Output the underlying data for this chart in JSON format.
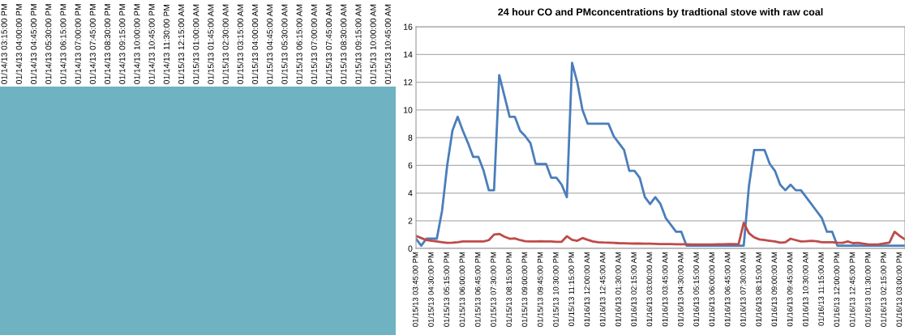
{
  "chart_data": [
    {
      "type": "other",
      "color": "#6fb3c3",
      "categories": [
        "01/14/13 03:15:00 PM",
        "01/14/13 04:00:00 PM",
        "01/14/13 04:45:00 PM",
        "01/14/13 05:30:00 PM",
        "01/14/13 06:15:00 PM",
        "01/14/13 07:00:00 PM",
        "01/14/13 07:45:00 PM",
        "01/14/13 08:30:00 PM",
        "01/14/13 09:15:00 PM",
        "01/14/13 10:00:00 PM",
        "01/14/13 10:45:00 PM",
        "01/14/13 11:30:00 PM",
        "01/15/13 12:15:00 AM",
        "01/15/13 01:00:00 AM",
        "01/15/13 01:45:00 AM",
        "01/15/13 02:30:00 AM",
        "01/15/13 03:15:00 AM",
        "01/15/13 04:00:00 AM",
        "01/15/13 04:45:00 AM",
        "01/15/13 05:30:00 AM",
        "01/15/13 06:15:00 AM",
        "01/15/13 07:00:00 AM",
        "01/15/13 07:45:00 AM",
        "01/15/13 08:30:00 AM",
        "01/15/13 09:15:00 AM",
        "01/15/13 10:00:00 AM",
        "01/15/13 10:45:00 AM"
      ]
    },
    {
      "type": "line",
      "title": "24 hour CO and PMconcentrations by tradtional stove with raw coal",
      "ylim": [
        0,
        16
      ],
      "yticks": [
        0,
        2,
        4,
        6,
        8,
        10,
        12,
        14,
        16
      ],
      "grid": "y",
      "legend": false,
      "categories": [
        "01/15/13 03:45:00 PM",
        null,
        null,
        "01/15/13 04:30:00 PM",
        null,
        null,
        "01/15/13 05:15:00 PM",
        null,
        null,
        "01/15/13 06:00:00 PM",
        null,
        null,
        "01/15/13 06:45:00 PM",
        null,
        null,
        "01/15/13 07:30:00 PM",
        null,
        null,
        "01/15/13 08:15:00 PM",
        null,
        null,
        "01/15/13 09:00:00 PM",
        null,
        null,
        "01/15/13 09:45:00 PM",
        null,
        null,
        "01/15/13 10:30:00 PM",
        null,
        null,
        "01/15/13 11:15:00 PM",
        null,
        null,
        "01/16/13 12:00:00 AM",
        null,
        null,
        "01/16/13 12:45:00 AM",
        null,
        null,
        "01/16/13 01:30:00 AM",
        null,
        null,
        "01/16/13 02:15:00 AM",
        null,
        null,
        "01/16/13 03:00:00 AM",
        null,
        null,
        "01/16/13 03:45:00 AM",
        null,
        null,
        "01/16/13 04:30:00 AM",
        null,
        null,
        "01/16/13 05:15:00 AM",
        null,
        null,
        "01/16/13 06:00:00 AM",
        null,
        null,
        "01/16/13 06:45:00 AM",
        null,
        null,
        "01/16/13 07:30:00 AM",
        null,
        null,
        "01/16/13 08:15:00 AM",
        null,
        null,
        "01/16/13 09:00:00 AM",
        null,
        null,
        "01/16/13 09:45:00 AM",
        null,
        null,
        "01/16/13 10:30:00 AM",
        null,
        null,
        "01/16/13 11:15:00 AM",
        null,
        null,
        "01/16/13 12:00:00 PM",
        null,
        null,
        "01/16/13 12:45:00 PM",
        null,
        null,
        "01/16/13 01:30:00 PM",
        null,
        null,
        "01/16/13 02:15:00 PM",
        null,
        null,
        "01/16/13 03:00:00 PM",
        null
      ],
      "series": [
        {
          "color": "#4a7ebb",
          "values": [
            0.7,
            0.2,
            0.7,
            0.7,
            0.7,
            2.7,
            6.0,
            8.5,
            9.5,
            8.5,
            7.6,
            6.6,
            6.6,
            5.6,
            4.2,
            4.2,
            12.5,
            11.0,
            9.5,
            9.5,
            8.5,
            8.1,
            7.6,
            6.1,
            6.1,
            6.1,
            5.1,
            5.1,
            4.6,
            3.7,
            13.4,
            12.0,
            10.0,
            9.0,
            9.0,
            9.0,
            9.0,
            9.0,
            8.1,
            7.6,
            7.1,
            5.6,
            5.6,
            5.1,
            3.7,
            3.2,
            3.7,
            3.2,
            2.2,
            1.7,
            1.2,
            1.2,
            0.2,
            0.2,
            0.2,
            0.2,
            0.2,
            0.2,
            0.2,
            0.2,
            0.2,
            0.2,
            0.2,
            0.2,
            4.5,
            7.1,
            7.1,
            7.1,
            6.1,
            5.6,
            4.6,
            4.2,
            4.6,
            4.2,
            4.2,
            3.7,
            3.2,
            2.7,
            2.2,
            1.2,
            1.2,
            0.2,
            0.2,
            0.2,
            0.2,
            0.2,
            0.2,
            0.2,
            0.2,
            0.2,
            0.2,
            0.2,
            0.2,
            0.2,
            0.2
          ]
        },
        {
          "color": "#be4b48",
          "values": [
            0.9,
            0.75,
            0.6,
            0.55,
            0.5,
            0.45,
            0.4,
            0.42,
            0.45,
            0.5,
            0.5,
            0.5,
            0.5,
            0.5,
            0.6,
            1.0,
            1.05,
            0.85,
            0.7,
            0.72,
            0.6,
            0.52,
            0.5,
            0.5,
            0.52,
            0.5,
            0.5,
            0.48,
            0.48,
            0.88,
            0.62,
            0.55,
            0.75,
            0.62,
            0.5,
            0.45,
            0.43,
            0.42,
            0.4,
            0.38,
            0.37,
            0.36,
            0.35,
            0.35,
            0.34,
            0.34,
            0.33,
            0.32,
            0.32,
            0.31,
            0.3,
            0.3,
            0.3,
            0.29,
            0.29,
            0.28,
            0.28,
            0.29,
            0.3,
            0.3,
            0.31,
            0.32,
            0.3,
            1.85,
            1.1,
            0.8,
            0.65,
            0.6,
            0.55,
            0.5,
            0.42,
            0.45,
            0.7,
            0.6,
            0.5,
            0.52,
            0.55,
            0.52,
            0.45,
            0.45,
            0.45,
            0.42,
            0.4,
            0.5,
            0.38,
            0.4,
            0.34,
            0.28,
            0.29,
            0.3,
            0.36,
            0.42,
            1.2,
            0.9,
            0.65
          ]
        }
      ]
    }
  ]
}
